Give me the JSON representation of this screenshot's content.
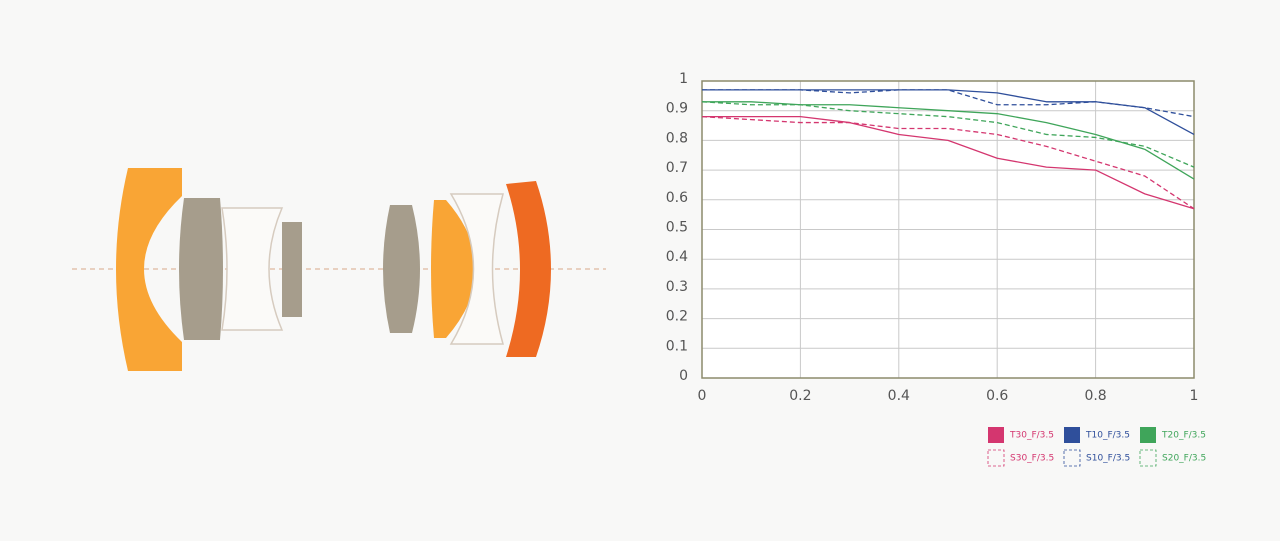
{
  "chart_data": {
    "type": "line",
    "x": [
      0,
      0.1,
      0.2,
      0.3,
      0.4,
      0.5,
      0.6,
      0.7,
      0.8,
      0.9,
      1
    ],
    "xlim": [
      0,
      1
    ],
    "xticks": [
      0,
      0.2,
      0.4,
      0.6,
      0.8,
      1
    ],
    "ylim": [
      0,
      1
    ],
    "yticks": [
      0,
      0.1,
      0.2,
      0.3,
      0.4,
      0.5,
      0.6,
      0.7,
      0.8,
      0.9,
      1
    ],
    "grid": true,
    "legend": "bottom-right",
    "series": [
      {
        "name": "T30_F/3.5",
        "color": "#d4366f",
        "dashed": false,
        "values": [
          0.88,
          0.88,
          0.88,
          0.86,
          0.82,
          0.8,
          0.74,
          0.71,
          0.7,
          0.62,
          0.57
        ]
      },
      {
        "name": "T10_F/3.5",
        "color": "#2f4f9b",
        "dashed": false,
        "values": [
          0.97,
          0.97,
          0.97,
          0.97,
          0.97,
          0.97,
          0.96,
          0.93,
          0.93,
          0.91,
          0.82
        ]
      },
      {
        "name": "T20_F/3.5",
        "color": "#3fa55a",
        "dashed": false,
        "values": [
          0.93,
          0.93,
          0.92,
          0.92,
          0.91,
          0.9,
          0.89,
          0.86,
          0.82,
          0.77,
          0.67
        ]
      },
      {
        "name": "S30_F/3.5",
        "color": "#d4366f",
        "dashed": true,
        "values": [
          0.88,
          0.87,
          0.86,
          0.86,
          0.84,
          0.84,
          0.82,
          0.78,
          0.73,
          0.68,
          0.57
        ]
      },
      {
        "name": "S10_F/3.5",
        "color": "#2f4f9b",
        "dashed": true,
        "values": [
          0.97,
          0.97,
          0.97,
          0.96,
          0.97,
          0.97,
          0.92,
          0.92,
          0.93,
          0.91,
          0.88
        ]
      },
      {
        "name": "S20_F/3.5",
        "color": "#3fa55a",
        "dashed": true,
        "values": [
          0.93,
          0.92,
          0.92,
          0.9,
          0.89,
          0.88,
          0.86,
          0.82,
          0.81,
          0.78,
          0.71
        ]
      }
    ]
  }
}
